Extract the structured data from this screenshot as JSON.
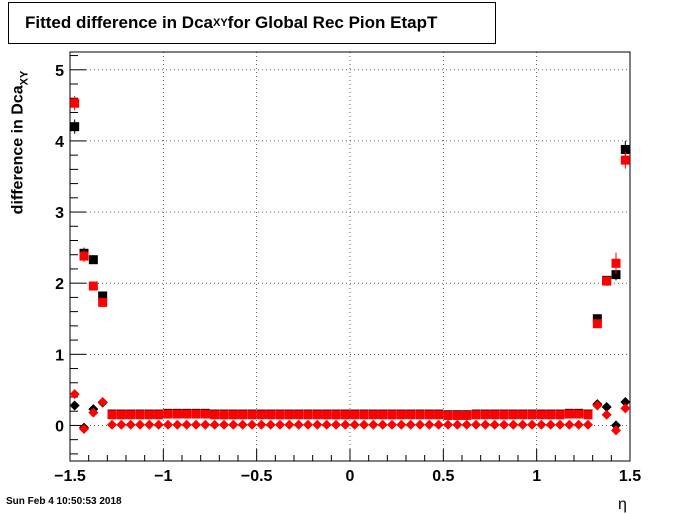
{
  "title": {
    "pre": "Fitted difference in Dca",
    "sub": "XY",
    "post": " for Global Rec Pion EtapT"
  },
  "ylabel": {
    "pre": "difference in Dca",
    "sub": "XY"
  },
  "xlabel": "η",
  "timestamp": "Sun Feb  4 10:50:53 2018",
  "colors": {
    "series1": "#000000",
    "series2": "#ff0000",
    "grid": "#000000"
  },
  "chart_data": {
    "type": "scatter",
    "xlim": [
      -1.5,
      1.5
    ],
    "ylim": [
      -0.5,
      5.25
    ],
    "grid": true,
    "x_ticks": [
      -1.5,
      -1,
      -0.5,
      0,
      0.5,
      1,
      1.5
    ],
    "x_tick_labels": [
      "−1.5",
      "−1",
      "−0.5",
      "0",
      "0.5",
      "1",
      "1.5"
    ],
    "y_ticks": [
      0,
      1,
      2,
      3,
      4,
      5
    ],
    "y_tick_labels": [
      "0",
      "1",
      "2",
      "3",
      "4",
      "5"
    ],
    "series": [
      {
        "marker": "square",
        "color": "#000000",
        "points": [
          {
            "x": -1.475,
            "y": 4.2,
            "err": 0.1
          },
          {
            "x": -1.425,
            "y": 2.42,
            "err": 0.08
          },
          {
            "x": -1.375,
            "y": 2.33,
            "err": 0.06
          },
          {
            "x": -1.325,
            "y": 1.82,
            "err": 0.04
          },
          {
            "x": 1.325,
            "y": 1.5,
            "err": 0.04
          },
          {
            "x": 1.375,
            "y": 2.04,
            "err": 0.06
          },
          {
            "x": 1.425,
            "y": 2.12,
            "err": 0.08
          },
          {
            "x": 1.475,
            "y": 3.88,
            "err": 0.12
          }
        ]
      },
      {
        "marker": "square",
        "color": "#ff0000",
        "points": [
          {
            "x": -1.475,
            "y": 4.53,
            "err": 0.1
          },
          {
            "x": -1.425,
            "y": 2.38,
            "err": 0.08
          },
          {
            "x": -1.375,
            "y": 1.96,
            "err": 0.06
          },
          {
            "x": -1.325,
            "y": 1.73,
            "err": 0.04
          },
          {
            "x": 1.325,
            "y": 1.43,
            "err": 0.04
          },
          {
            "x": 1.375,
            "y": 2.03,
            "err": 0.07
          },
          {
            "x": 1.425,
            "y": 2.28,
            "err": 0.15
          },
          {
            "x": 1.475,
            "y": 3.73,
            "err": 0.12
          }
        ]
      },
      {
        "marker": "diamond",
        "color": "#000000",
        "points": [
          {
            "x": -1.475,
            "y": 0.28,
            "err": 0.05
          },
          {
            "x": -1.425,
            "y": -0.03,
            "err": 0.05
          },
          {
            "x": -1.375,
            "y": 0.23,
            "err": 0.04
          },
          {
            "x": -1.325,
            "y": 0.32,
            "err": 0.03
          },
          {
            "x": 1.325,
            "y": 0.3,
            "err": 0.03
          },
          {
            "x": 1.375,
            "y": 0.26,
            "err": 0.04
          },
          {
            "x": 1.425,
            "y": 0.0,
            "err": 0.05
          },
          {
            "x": 1.475,
            "y": 0.33,
            "err": 0.06
          }
        ]
      },
      {
        "marker": "diamond",
        "color": "#ff0000",
        "points": [
          {
            "x": -1.475,
            "y": 0.44,
            "err": 0.06
          },
          {
            "x": -1.425,
            "y": -0.05,
            "err": 0.06
          },
          {
            "x": -1.375,
            "y": 0.18,
            "err": 0.04
          },
          {
            "x": -1.325,
            "y": 0.33,
            "err": 0.03
          },
          {
            "x": 1.325,
            "y": 0.28,
            "err": 0.03
          },
          {
            "x": 1.375,
            "y": 0.15,
            "err": 0.04
          },
          {
            "x": 1.425,
            "y": -0.07,
            "err": 0.06
          },
          {
            "x": 1.475,
            "y": 0.24,
            "err": 0.06
          }
        ]
      },
      {
        "marker": "square",
        "color": "#000000",
        "points": [
          {
            "x": -1.275,
            "y": 0.16
          },
          {
            "x": -1.225,
            "y": 0.16
          },
          {
            "x": -1.175,
            "y": 0.16
          },
          {
            "x": -1.125,
            "y": 0.16
          },
          {
            "x": -1.075,
            "y": 0.16
          },
          {
            "x": -1.025,
            "y": 0.16
          },
          {
            "x": -0.975,
            "y": 0.17
          },
          {
            "x": -0.925,
            "y": 0.17
          },
          {
            "x": -0.875,
            "y": 0.17
          },
          {
            "x": -0.825,
            "y": 0.17
          },
          {
            "x": -0.775,
            "y": 0.17
          },
          {
            "x": -0.725,
            "y": 0.16
          },
          {
            "x": -0.675,
            "y": 0.16
          },
          {
            "x": -0.625,
            "y": 0.16
          },
          {
            "x": -0.575,
            "y": 0.16
          },
          {
            "x": -0.525,
            "y": 0.16
          },
          {
            "x": -0.475,
            "y": 0.16
          },
          {
            "x": -0.425,
            "y": 0.16
          },
          {
            "x": -0.375,
            "y": 0.16
          },
          {
            "x": -0.325,
            "y": 0.16
          },
          {
            "x": -0.275,
            "y": 0.16
          },
          {
            "x": -0.225,
            "y": 0.16
          },
          {
            "x": -0.175,
            "y": 0.16
          },
          {
            "x": -0.125,
            "y": 0.16
          },
          {
            "x": -0.075,
            "y": 0.16
          },
          {
            "x": -0.025,
            "y": 0.16
          },
          {
            "x": 0.025,
            "y": 0.16
          },
          {
            "x": 0.075,
            "y": 0.16
          },
          {
            "x": 0.125,
            "y": 0.16
          },
          {
            "x": 0.175,
            "y": 0.16
          },
          {
            "x": 0.225,
            "y": 0.16
          },
          {
            "x": 0.275,
            "y": 0.16
          },
          {
            "x": 0.325,
            "y": 0.16
          },
          {
            "x": 0.375,
            "y": 0.16
          },
          {
            "x": 0.425,
            "y": 0.16
          },
          {
            "x": 0.475,
            "y": 0.16
          },
          {
            "x": 0.525,
            "y": 0.15
          },
          {
            "x": 0.575,
            "y": 0.15
          },
          {
            "x": 0.625,
            "y": 0.15
          },
          {
            "x": 0.675,
            "y": 0.16
          },
          {
            "x": 0.725,
            "y": 0.16
          },
          {
            "x": 0.775,
            "y": 0.16
          },
          {
            "x": 0.825,
            "y": 0.16
          },
          {
            "x": 0.875,
            "y": 0.16
          },
          {
            "x": 0.925,
            "y": 0.16
          },
          {
            "x": 0.975,
            "y": 0.16
          },
          {
            "x": 1.025,
            "y": 0.16
          },
          {
            "x": 1.075,
            "y": 0.16
          },
          {
            "x": 1.125,
            "y": 0.16
          },
          {
            "x": 1.175,
            "y": 0.17
          },
          {
            "x": 1.225,
            "y": 0.17
          },
          {
            "x": 1.275,
            "y": 0.16
          }
        ]
      },
      {
        "marker": "square",
        "color": "#ff0000",
        "points": [
          {
            "x": -1.275,
            "y": 0.15
          },
          {
            "x": -1.225,
            "y": 0.15
          },
          {
            "x": -1.175,
            "y": 0.15
          },
          {
            "x": -1.125,
            "y": 0.15
          },
          {
            "x": -1.075,
            "y": 0.15
          },
          {
            "x": -1.025,
            "y": 0.15
          },
          {
            "x": -0.975,
            "y": 0.16
          },
          {
            "x": -0.925,
            "y": 0.16
          },
          {
            "x": -0.875,
            "y": 0.16
          },
          {
            "x": -0.825,
            "y": 0.16
          },
          {
            "x": -0.775,
            "y": 0.16
          },
          {
            "x": -0.725,
            "y": 0.15
          },
          {
            "x": -0.675,
            "y": 0.15
          },
          {
            "x": -0.625,
            "y": 0.15
          },
          {
            "x": -0.575,
            "y": 0.15
          },
          {
            "x": -0.525,
            "y": 0.15
          },
          {
            "x": -0.475,
            "y": 0.15
          },
          {
            "x": -0.425,
            "y": 0.15
          },
          {
            "x": -0.375,
            "y": 0.15
          },
          {
            "x": -0.325,
            "y": 0.15
          },
          {
            "x": -0.275,
            "y": 0.15
          },
          {
            "x": -0.225,
            "y": 0.15
          },
          {
            "x": -0.175,
            "y": 0.15
          },
          {
            "x": -0.125,
            "y": 0.15
          },
          {
            "x": -0.075,
            "y": 0.15
          },
          {
            "x": -0.025,
            "y": 0.15
          },
          {
            "x": 0.025,
            "y": 0.15
          },
          {
            "x": 0.075,
            "y": 0.15
          },
          {
            "x": 0.125,
            "y": 0.15
          },
          {
            "x": 0.175,
            "y": 0.15
          },
          {
            "x": 0.225,
            "y": 0.15
          },
          {
            "x": 0.275,
            "y": 0.15
          },
          {
            "x": 0.325,
            "y": 0.15
          },
          {
            "x": 0.375,
            "y": 0.15
          },
          {
            "x": 0.425,
            "y": 0.15
          },
          {
            "x": 0.475,
            "y": 0.15
          },
          {
            "x": 0.525,
            "y": 0.14
          },
          {
            "x": 0.575,
            "y": 0.14
          },
          {
            "x": 0.625,
            "y": 0.14
          },
          {
            "x": 0.675,
            "y": 0.15
          },
          {
            "x": 0.725,
            "y": 0.15
          },
          {
            "x": 0.775,
            "y": 0.15
          },
          {
            "x": 0.825,
            "y": 0.15
          },
          {
            "x": 0.875,
            "y": 0.15
          },
          {
            "x": 0.925,
            "y": 0.15
          },
          {
            "x": 0.975,
            "y": 0.15
          },
          {
            "x": 1.025,
            "y": 0.15
          },
          {
            "x": 1.075,
            "y": 0.15
          },
          {
            "x": 1.125,
            "y": 0.15
          },
          {
            "x": 1.175,
            "y": 0.16
          },
          {
            "x": 1.225,
            "y": 0.16
          },
          {
            "x": 1.275,
            "y": 0.15
          }
        ]
      },
      {
        "marker": "diamond",
        "color": "#ff0000",
        "points": [
          {
            "x": -1.275,
            "y": 0.01
          },
          {
            "x": -1.225,
            "y": 0.01
          },
          {
            "x": -1.175,
            "y": 0.01
          },
          {
            "x": -1.125,
            "y": 0.01
          },
          {
            "x": -1.075,
            "y": 0.01
          },
          {
            "x": -1.025,
            "y": 0.01
          },
          {
            "x": -0.975,
            "y": 0.01
          },
          {
            "x": -0.925,
            "y": 0.01
          },
          {
            "x": -0.875,
            "y": 0.01
          },
          {
            "x": -0.825,
            "y": 0.01
          },
          {
            "x": -0.775,
            "y": 0.01
          },
          {
            "x": -0.725,
            "y": 0.01
          },
          {
            "x": -0.675,
            "y": 0.01
          },
          {
            "x": -0.625,
            "y": 0.01
          },
          {
            "x": -0.575,
            "y": 0.01
          },
          {
            "x": -0.525,
            "y": 0.01
          },
          {
            "x": -0.475,
            "y": 0.01
          },
          {
            "x": -0.425,
            "y": 0.01
          },
          {
            "x": -0.375,
            "y": 0.01
          },
          {
            "x": -0.325,
            "y": 0.01
          },
          {
            "x": -0.275,
            "y": 0.01
          },
          {
            "x": -0.225,
            "y": 0.01
          },
          {
            "x": -0.175,
            "y": 0.01
          },
          {
            "x": -0.125,
            "y": 0.01
          },
          {
            "x": -0.075,
            "y": 0.01
          },
          {
            "x": -0.025,
            "y": 0.01
          },
          {
            "x": 0.025,
            "y": 0.01
          },
          {
            "x": 0.075,
            "y": 0.01
          },
          {
            "x": 0.125,
            "y": 0.01
          },
          {
            "x": 0.175,
            "y": 0.01
          },
          {
            "x": 0.225,
            "y": 0.01
          },
          {
            "x": 0.275,
            "y": 0.01
          },
          {
            "x": 0.325,
            "y": 0.01
          },
          {
            "x": 0.375,
            "y": 0.01
          },
          {
            "x": 0.425,
            "y": 0.01
          },
          {
            "x": 0.475,
            "y": 0.01
          },
          {
            "x": 0.525,
            "y": 0.01
          },
          {
            "x": 0.575,
            "y": 0.01
          },
          {
            "x": 0.625,
            "y": 0.01
          },
          {
            "x": 0.675,
            "y": 0.01
          },
          {
            "x": 0.725,
            "y": 0.01
          },
          {
            "x": 0.775,
            "y": 0.01
          },
          {
            "x": 0.825,
            "y": 0.01
          },
          {
            "x": 0.875,
            "y": 0.01
          },
          {
            "x": 0.925,
            "y": 0.01
          },
          {
            "x": 0.975,
            "y": 0.01
          },
          {
            "x": 1.025,
            "y": 0.01
          },
          {
            "x": 1.075,
            "y": 0.01
          },
          {
            "x": 1.125,
            "y": 0.01
          },
          {
            "x": 1.175,
            "y": 0.01
          },
          {
            "x": 1.225,
            "y": 0.01
          },
          {
            "x": 1.275,
            "y": 0.01
          }
        ]
      }
    ]
  }
}
